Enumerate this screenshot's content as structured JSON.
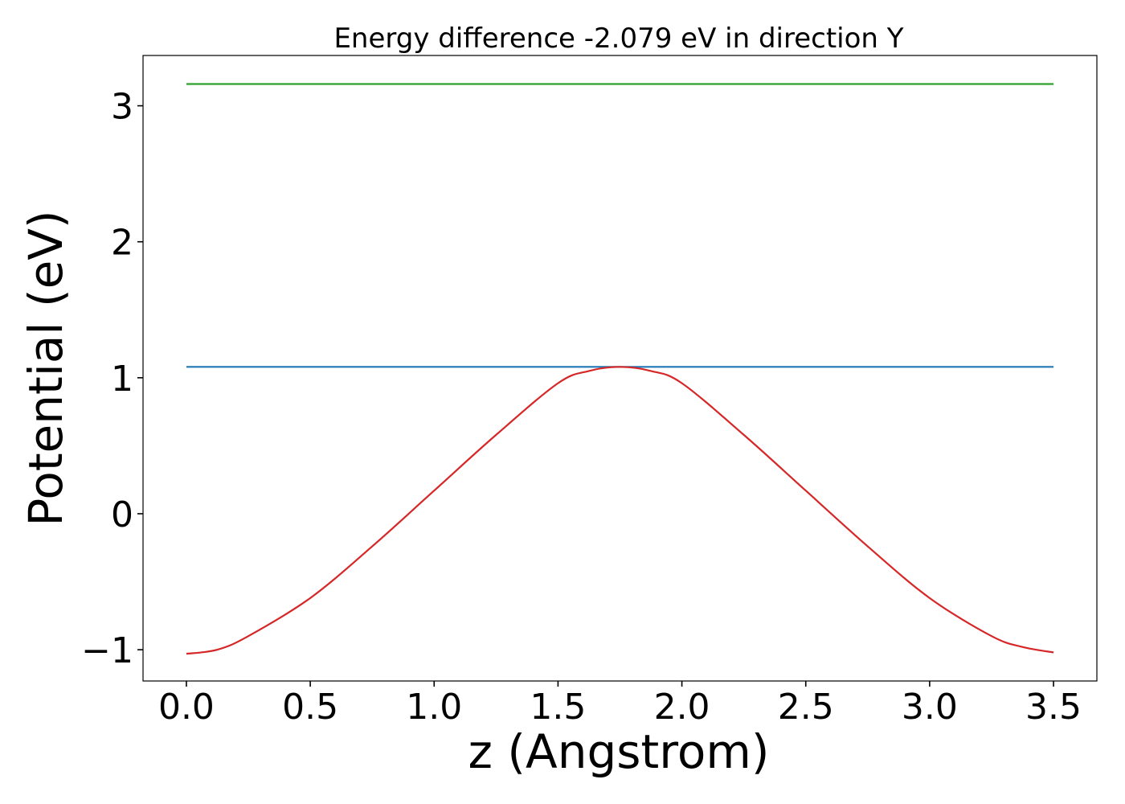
{
  "chart_data": {
    "type": "line",
    "title": "Energy difference -2.079 eV in direction Y",
    "xlabel": "z (Angstrom)",
    "ylabel": "Potential (eV)",
    "xlim": [
      -0.175,
      3.675
    ],
    "ylim": [
      -1.23,
      3.37
    ],
    "xticks": [
      0.0,
      0.5,
      1.0,
      1.5,
      2.0,
      2.5,
      3.0,
      3.5
    ],
    "xtick_labels": [
      "0.0",
      "0.5",
      "1.0",
      "1.5",
      "2.0",
      "2.5",
      "3.0",
      "3.5"
    ],
    "yticks": [
      -1,
      0,
      1,
      2,
      3
    ],
    "ytick_labels": [
      "−1",
      "0",
      "1",
      "2",
      "3"
    ],
    "grid": false,
    "series": [
      {
        "color": "#2ca02c",
        "x": [
          0.0,
          3.5
        ],
        "y": [
          3.16,
          3.16
        ]
      },
      {
        "color": "#1f77b4",
        "x": [
          0.0,
          3.5
        ],
        "y": [
          1.08,
          1.08
        ]
      },
      {
        "color": "#d62728",
        "x": [
          0.0,
          0.125,
          0.25,
          0.5,
          0.75,
          1.0,
          1.25,
          1.5,
          1.625,
          1.75,
          1.875,
          2.0,
          2.25,
          2.5,
          2.75,
          3.0,
          3.25,
          3.375,
          3.5
        ],
        "y": [
          -1.03,
          -1.0,
          -0.9,
          -0.62,
          -0.24,
          0.17,
          0.58,
          0.96,
          1.05,
          1.08,
          1.05,
          0.96,
          0.58,
          0.17,
          -0.24,
          -0.62,
          -0.9,
          -0.98,
          -1.02
        ]
      }
    ]
  }
}
